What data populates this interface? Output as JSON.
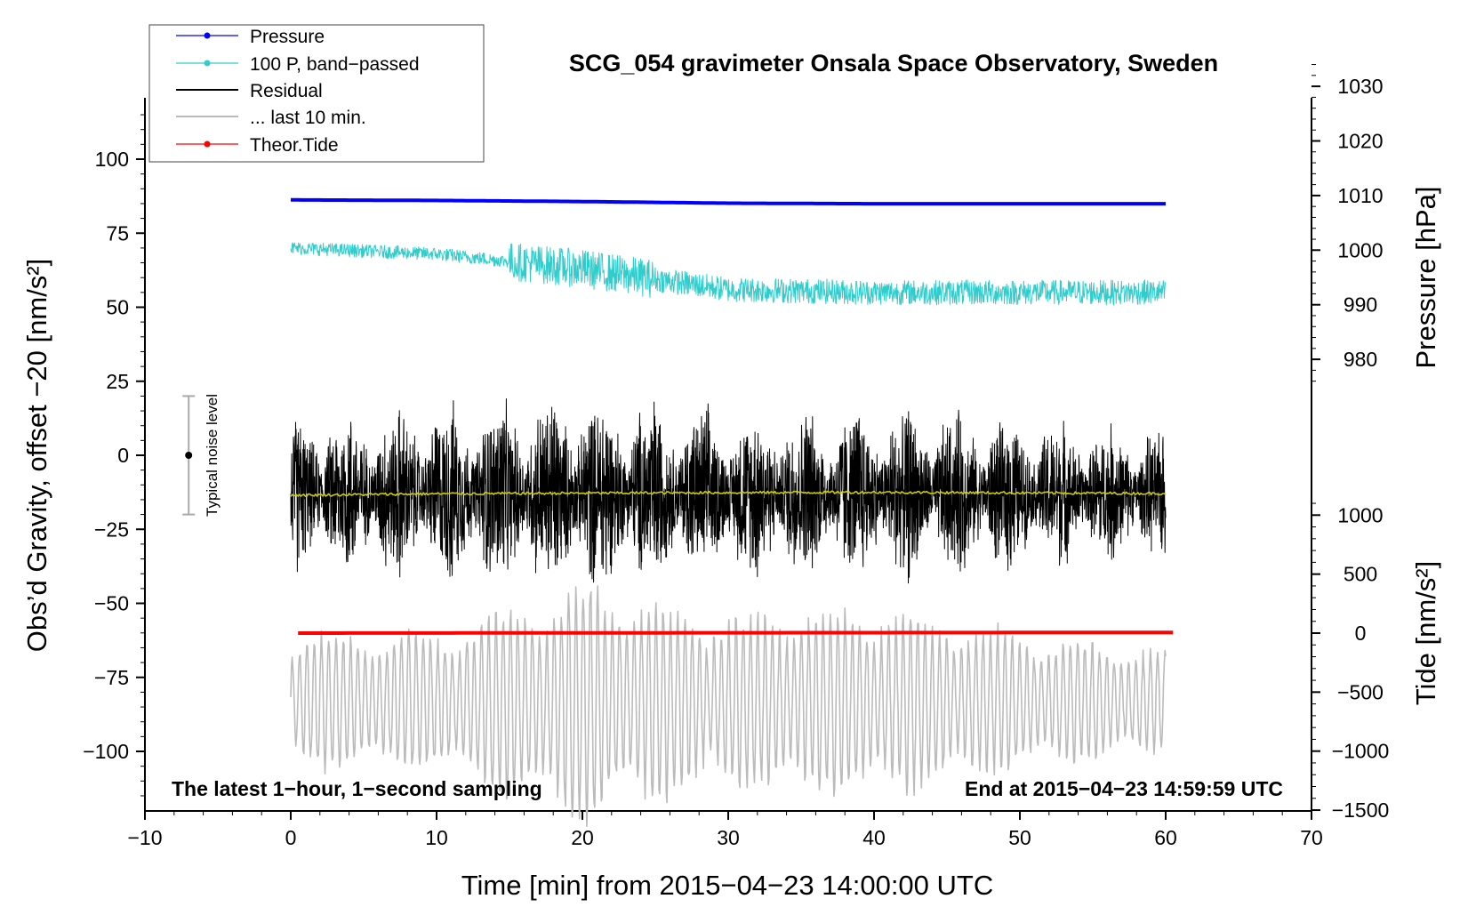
{
  "chart_data": {
    "type": "line",
    "title": "SCG_054 gravimeter Onsala Space Observatory, Sweden",
    "xlabel": "Time [min] from 2015−04−23 14:00:00 UTC",
    "ylabel_left": "Obs’d Gravity, offset −20 [nm/s²]",
    "ylabel_pressure": "Pressure [hPa]",
    "ylabel_tide": "Tide [nm/s²]",
    "xlim": [
      -10,
      70
    ],
    "ylim_left": [
      -120,
      120
    ],
    "x_ticks": [
      -10,
      0,
      10,
      20,
      30,
      40,
      50,
      60,
      70
    ],
    "x_tick_labels": [
      "−10",
      "0",
      "10",
      "20",
      "30",
      "40",
      "50",
      "60",
      "70"
    ],
    "left_ticks": [
      100,
      75,
      50,
      25,
      0,
      -25,
      -50,
      -75,
      -100
    ],
    "left_tick_labels": [
      "100",
      "75",
      "50",
      "25",
      "0",
      "−25",
      "−50",
      "−75",
      "−100"
    ],
    "pressure_ticks": [
      1030,
      1020,
      1010,
      1000,
      990,
      980
    ],
    "pressure_tick_labels": [
      "1030",
      "1020",
      "1010",
      "1000",
      "990",
      "980"
    ],
    "tide_ticks": [
      1000,
      500,
      0,
      -500,
      -1000,
      -1500
    ],
    "tide_tick_labels": [
      "1000",
      "500",
      "0",
      "−500",
      "−1000",
      "−1500"
    ],
    "legend": [
      {
        "label": "Pressure",
        "color": "#0000ff",
        "marker": true
      },
      {
        "label": "100 P, band−passed",
        "color": "#33cccc",
        "marker": true
      },
      {
        "label": "Residual",
        "color": "#000000",
        "marker": false
      },
      {
        "label": "... last 10 min.",
        "color": "#bbbbbb",
        "marker": false
      },
      {
        "label": "Theor.Tide",
        "color": "#ff0000",
        "marker": true
      }
    ],
    "series": [
      {
        "name": "Pressure",
        "axis": "pressure_hPa",
        "color": "#0000ff",
        "x": [
          0,
          10,
          20,
          30,
          40,
          50,
          60
        ],
        "values": [
          1009.2,
          1009.1,
          1008.9,
          1008.6,
          1008.5,
          1008.5,
          1008.5
        ]
      },
      {
        "name": "100 P, band−passed",
        "axis": "gravity_nm_s2",
        "color": "#33cccc",
        "x": [
          0,
          10,
          20,
          30,
          40,
          50,
          60
        ],
        "values": [
          70,
          68,
          63,
          56,
          55,
          55,
          55
        ]
      },
      {
        "name": "Residual",
        "axis": "gravity_nm_s2",
        "color": "#000000",
        "x": [
          0,
          10,
          20,
          30,
          40,
          50,
          60
        ],
        "values": [
          -13,
          -13,
          -13,
          -13,
          -13,
          -13,
          -13
        ],
        "amplitude": [
          30,
          35,
          40,
          33,
          35,
          30,
          25
        ]
      },
      {
        "name": "Residual running mean",
        "axis": "gravity_nm_s2",
        "color": "#cccc00",
        "x": [
          0,
          10,
          20,
          30,
          40,
          50,
          60
        ],
        "values": [
          -13.5,
          -13,
          -12.8,
          -12.6,
          -12.5,
          -12.7,
          -12.9
        ]
      },
      {
        "name": "... last 10 min.",
        "axis": "gravity_nm_s2",
        "color": "#bbbbbb",
        "x": [
          0,
          10,
          20,
          30,
          40,
          50,
          60
        ],
        "values": [
          -83,
          -83,
          -83,
          -83,
          -83,
          -83,
          -83
        ],
        "amplitude": [
          20,
          20,
          35,
          25,
          28,
          20,
          15
        ]
      },
      {
        "name": "Theor.Tide",
        "axis": "tide_nm_s2",
        "color": "#ff0000",
        "x": [
          0,
          20,
          40,
          60
        ],
        "values": [
          0,
          2,
          4,
          6
        ]
      }
    ],
    "noise_bar": {
      "label": "Typical noise level",
      "x": -7,
      "center": 0,
      "low": -20,
      "high": 20
    },
    "annotations": {
      "left": "The latest 1−hour, 1−second sampling",
      "right": "End at 2015−04−23 14:59:59 UTC"
    }
  }
}
